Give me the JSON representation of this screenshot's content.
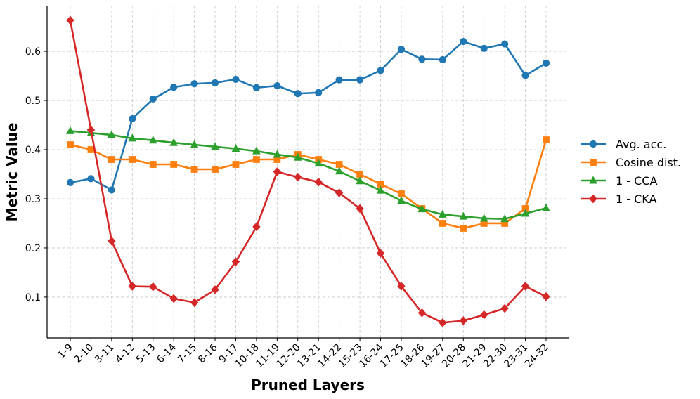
{
  "chart_data": {
    "type": "line",
    "title": "",
    "xlabel": "Pruned Layers",
    "ylabel": "Metric Value",
    "categories": [
      "1-9",
      "2-10",
      "3-11",
      "4-12",
      "5-13",
      "6-14",
      "7-15",
      "8-16",
      "9-17",
      "10-18",
      "11-19",
      "12-20",
      "13-21",
      "14-22",
      "15-23",
      "16-24",
      "17-25",
      "18-26",
      "19-27",
      "20-28",
      "21-29",
      "22-30",
      "23-31",
      "24-32"
    ],
    "ylim": [
      0.017,
      0.693
    ],
    "yticks": [
      0.1,
      0.2,
      0.3,
      0.4,
      0.5,
      0.6
    ],
    "ytick_labels": [
      "0.1",
      "0.2",
      "0.3",
      "0.4",
      "0.5",
      "0.6"
    ],
    "grid": true,
    "legend_position": "right",
    "series": [
      {
        "name": "Avg. acc.",
        "color": "#1f77b4",
        "marker": "circle",
        "values": [
          0.333,
          0.341,
          0.318,
          0.463,
          0.503,
          0.527,
          0.534,
          0.536,
          0.543,
          0.526,
          0.53,
          0.514,
          0.516,
          0.542,
          0.542,
          0.561,
          0.604,
          0.584,
          0.583,
          0.62,
          0.606,
          0.615,
          0.551,
          0.576
        ]
      },
      {
        "name": "Cosine dist.",
        "color": "#ff7f0e",
        "marker": "square",
        "values": [
          0.41,
          0.4,
          0.38,
          0.38,
          0.37,
          0.37,
          0.36,
          0.36,
          0.37,
          0.38,
          0.38,
          0.39,
          0.38,
          0.37,
          0.35,
          0.33,
          0.31,
          0.28,
          0.25,
          0.24,
          0.25,
          0.25,
          0.28,
          0.42
        ]
      },
      {
        "name": "1 - CCA",
        "color": "#2ca02c",
        "marker": "triangle",
        "values": [
          0.438,
          0.434,
          0.43,
          0.423,
          0.419,
          0.414,
          0.41,
          0.406,
          0.402,
          0.397,
          0.39,
          0.384,
          0.372,
          0.356,
          0.336,
          0.317,
          0.296,
          0.279,
          0.268,
          0.264,
          0.26,
          0.259,
          0.27,
          0.281
        ]
      },
      {
        "name": "1 - CKA",
        "color": "#d62728",
        "marker": "diamond",
        "values": [
          0.663,
          0.44,
          0.214,
          0.122,
          0.121,
          0.097,
          0.089,
          0.115,
          0.172,
          0.243,
          0.355,
          0.344,
          0.334,
          0.312,
          0.28,
          0.189,
          0.122,
          0.068,
          0.048,
          0.052,
          0.064,
          0.077,
          0.122,
          0.101
        ]
      }
    ]
  }
}
